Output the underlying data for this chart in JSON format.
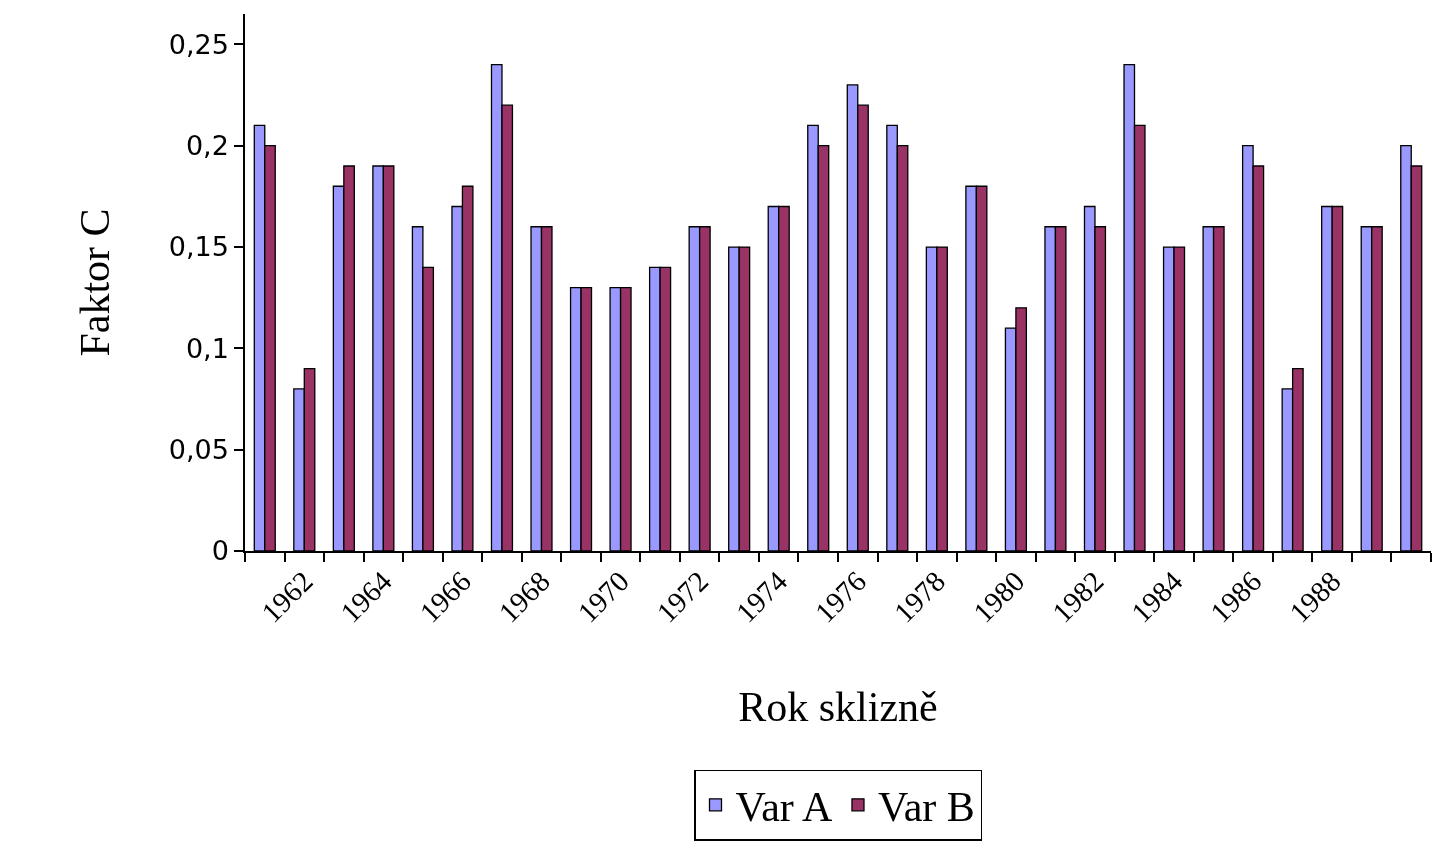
{
  "chart_data": {
    "type": "bar",
    "xlabel": "Rok sklizně",
    "ylabel": "Faktor C",
    "categories": [
      null,
      "1962",
      null,
      "1964",
      null,
      "1966",
      null,
      "1968",
      null,
      "1970",
      null,
      "1972",
      null,
      "1974",
      null,
      "1976",
      null,
      "1978",
      null,
      "1980",
      null,
      "1982",
      null,
      "1984",
      null,
      "1986",
      null,
      "1988",
      null,
      null
    ],
    "series": [
      {
        "name": "Var A",
        "color": "#9999ff",
        "values": [
          0.21,
          0.08,
          0.18,
          0.19,
          0.16,
          0.17,
          0.24,
          0.16,
          0.13,
          0.13,
          0.14,
          0.16,
          0.15,
          0.17,
          0.21,
          0.23,
          0.21,
          0.15,
          0.18,
          0.11,
          0.16,
          0.17,
          0.24,
          0.15,
          0.16,
          0.2,
          0.08,
          0.17,
          0.16,
          0.2
        ]
      },
      {
        "name": "Var B",
        "color": "#993366",
        "values": [
          0.2,
          0.09,
          0.19,
          0.19,
          0.14,
          0.18,
          0.22,
          0.16,
          0.13,
          0.13,
          0.14,
          0.16,
          0.15,
          0.17,
          0.2,
          0.22,
          0.2,
          0.15,
          0.18,
          0.12,
          0.16,
          0.16,
          0.21,
          0.15,
          0.16,
          0.19,
          0.09,
          0.17,
          0.16,
          0.19
        ]
      }
    ],
    "ylim": [
      0,
      0.265
    ],
    "yticks": [
      0,
      {
        "value": 0.05,
        "label": "0,05"
      },
      {
        "value": 0.1,
        "label": "0,1"
      },
      {
        "value": 0.15,
        "label": "0,15"
      },
      {
        "value": 0.2,
        "label": "0,2"
      },
      {
        "value": 0.25,
        "label": "0,25"
      }
    ],
    "legend": "bottom"
  }
}
